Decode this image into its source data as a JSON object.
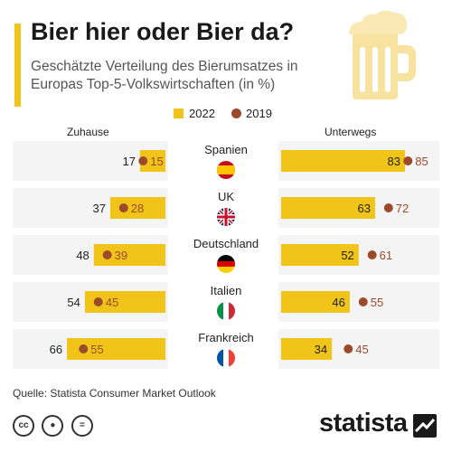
{
  "header": {
    "title": "Bier hier oder Bier da?",
    "subtitle": "Geschätzte Verteilung des Bierumsatzes in Europas Top-5-Volkswirtschaften (in %)"
  },
  "legend": {
    "a": "2022",
    "b": "2019"
  },
  "columns": {
    "left": "Zuhause",
    "right": "Unterwegs"
  },
  "colors": {
    "accent": "#f0c419",
    "bar": "#f0c419",
    "dot": "#9c4a2c",
    "dotText": "#9c4a2c",
    "band": "#f4f4f4"
  },
  "chart_data": {
    "type": "bar",
    "title": "Bier hier oder Bier da?",
    "categories": [
      "Spanien",
      "UK",
      "Deutschland",
      "Italien",
      "Frankreich"
    ],
    "panels": [
      {
        "name": "Zuhause",
        "series": [
          {
            "name": "2022",
            "values": [
              17,
              37,
              48,
              54,
              66
            ]
          },
          {
            "name": "2019",
            "values": [
              15,
              28,
              39,
              45,
              55
            ]
          }
        ]
      },
      {
        "name": "Unterwegs",
        "series": [
          {
            "name": "2022",
            "values": [
              83,
              63,
              52,
              46,
              34
            ]
          },
          {
            "name": "2019",
            "values": [
              85,
              72,
              61,
              55,
              45
            ]
          }
        ]
      }
    ],
    "ylim": [
      0,
      100
    ],
    "legend": "top-center"
  },
  "flags": [
    "spain-flag-icon",
    "uk-flag-icon",
    "germany-flag-icon",
    "italy-flag-icon",
    "france-flag-icon"
  ],
  "footer": {
    "source": "Quelle: Statista Consumer Market Outlook",
    "brand": "statista"
  },
  "icons": {
    "beer": "beer-mug-icon",
    "cc": "cc-license-icon",
    "by": "attribution-icon",
    "nd": "no-derivatives-icon",
    "brand": "statista-logo-icon"
  }
}
